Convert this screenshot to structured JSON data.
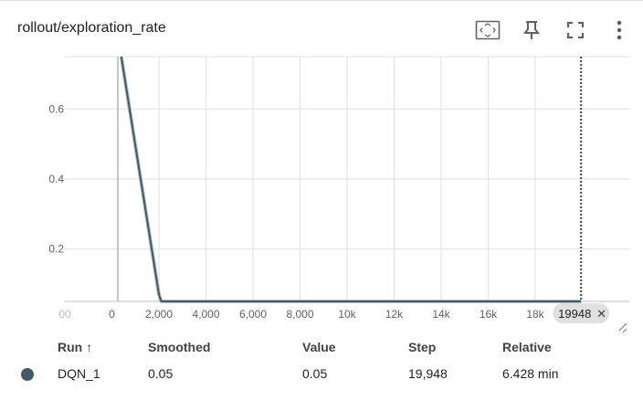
{
  "card": {
    "title": "rollout/exploration_rate",
    "toolbar": [
      {
        "name": "fit-domain-icon"
      },
      {
        "name": "pin-icon"
      },
      {
        "name": "fullscreen-icon"
      },
      {
        "name": "more-vert-icon"
      }
    ]
  },
  "chart_data": {
    "type": "line",
    "y_ticks": [
      "0.6",
      "0.4",
      "0.2"
    ],
    "x_ticks": [
      "00",
      "0",
      "2,000",
      "4,000",
      "6,000",
      "8,000",
      "10k",
      "12k",
      "14k",
      "16k",
      "18k",
      "2"
    ],
    "xlim": [
      -2000,
      22000
    ],
    "ylim": [
      0.05,
      0.75
    ],
    "series": [
      {
        "name": "DQN_1",
        "color": "#455a64",
        "x": [
          400,
          2000,
          2100,
          19948
        ],
        "y": [
          0.75,
          0.07,
          0.05,
          0.05
        ]
      }
    ],
    "cursor": {
      "x": 19948,
      "label": "19948"
    }
  },
  "table": {
    "headers": {
      "run": "Run ↑",
      "smoothed": "Smoothed",
      "value": "Value",
      "step": "Step",
      "relative": "Relative"
    },
    "rows": [
      {
        "color": "#455a64",
        "run": "DQN_1",
        "smoothed": "0.05",
        "value": "0.05",
        "step": "19,948",
        "relative": "6.428 min"
      }
    ]
  }
}
